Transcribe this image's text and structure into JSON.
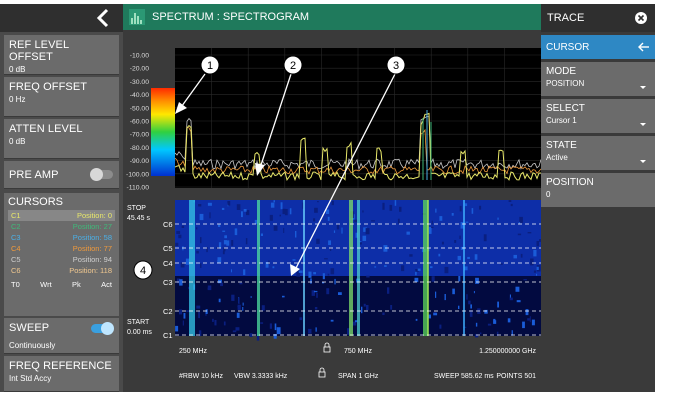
{
  "left_panel": {
    "ref_level_offset": {
      "label": "REF LEVEL OFFSET",
      "value": "0 dB"
    },
    "freq_offset": {
      "label": "FREQ OFFSET",
      "value": "0 Hz"
    },
    "atten_level": {
      "label": "ATTEN LEVEL",
      "value": "0 dB"
    },
    "pre_amp": {
      "label": "PRE AMP",
      "enabled": false
    },
    "cursors": {
      "title": "CURSORS",
      "items": [
        {
          "name": "C1",
          "position": "Position: 0",
          "color": "#e8e86a",
          "selected": true
        },
        {
          "name": "C2",
          "position": "Position: 27",
          "color": "#3fb97a"
        },
        {
          "name": "C3",
          "position": "Position: 58",
          "color": "#4ab0e8"
        },
        {
          "name": "C4",
          "position": "Position: 77",
          "color": "#f09a3c"
        },
        {
          "name": "C5",
          "position": "Position: 94",
          "color": "#cfcfcf"
        },
        {
          "name": "C6",
          "position": "Position: 118",
          "color": "#f0c890"
        }
      ],
      "columns": [
        "T0",
        "Wrt",
        "Pk",
        "Act"
      ]
    },
    "sweep": {
      "label": "SWEEP",
      "value": "Continuously",
      "enabled": true
    },
    "freq_reference": {
      "label": "FREQ REFERENCE",
      "value": "Int Std Accy"
    }
  },
  "header": {
    "title": "SPECTRUM : SPECTROGRAM",
    "icon": "spectrum-bars-icon"
  },
  "spectrum": {
    "y_ticks": [
      "-10.00",
      "-20.00",
      "-30.00",
      "-40.00",
      "-50.00",
      "-60.00",
      "-70.00",
      "-80.00",
      "-90.00",
      "-100.00",
      "-110.00"
    ]
  },
  "spectrogram": {
    "stop_label": "STOP",
    "stop_time": "45.45 s",
    "start_label": "START",
    "start_time": "0.00 ms",
    "cursor_labels": [
      "C6",
      "C5",
      "C4",
      "C3",
      "C2",
      "C1"
    ]
  },
  "callouts": [
    "1",
    "2",
    "3",
    "4"
  ],
  "footer": {
    "freq_start": "250 MHz",
    "freq_center": "750 MHz",
    "freq_stop": "1.250000000 GHz",
    "rbw": "#RBW 10 kHz",
    "vbw": "VBW 3.3333 kHz",
    "span": "SPAN 1 GHz",
    "sweep": "SWEEP",
    "sweep_time": "585.62 ms",
    "points": "POINTS 501"
  },
  "right_panel": {
    "title": "TRACE",
    "cursor_title": "CURSOR",
    "mode": {
      "label": "MODE",
      "value": "POSITION"
    },
    "select": {
      "label": "SELECT",
      "value": "Cursor 1"
    },
    "state": {
      "label": "STATE",
      "value": "Active"
    },
    "position": {
      "label": "POSITION",
      "value": "0"
    }
  }
}
